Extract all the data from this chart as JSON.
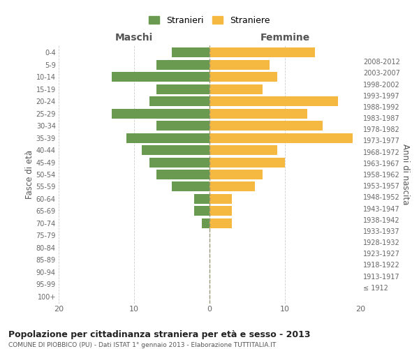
{
  "age_groups": [
    "100+",
    "95-99",
    "90-94",
    "85-89",
    "80-84",
    "75-79",
    "70-74",
    "65-69",
    "60-64",
    "55-59",
    "50-54",
    "45-49",
    "40-44",
    "35-39",
    "30-34",
    "25-29",
    "20-24",
    "15-19",
    "10-14",
    "5-9",
    "0-4"
  ],
  "birth_years": [
    "≤ 1912",
    "1913-1917",
    "1918-1922",
    "1923-1927",
    "1928-1932",
    "1933-1937",
    "1938-1942",
    "1943-1947",
    "1948-1952",
    "1953-1957",
    "1958-1962",
    "1963-1967",
    "1968-1972",
    "1973-1977",
    "1978-1982",
    "1983-1987",
    "1988-1992",
    "1993-1997",
    "1998-2002",
    "2003-2007",
    "2008-2012"
  ],
  "maschi": [
    0,
    0,
    0,
    0,
    0,
    0,
    1,
    2,
    2,
    5,
    7,
    8,
    9,
    11,
    7,
    13,
    8,
    7,
    13,
    7,
    5
  ],
  "femmine": [
    0,
    0,
    0,
    0,
    0,
    0,
    3,
    3,
    3,
    6,
    7,
    10,
    9,
    19,
    15,
    13,
    17,
    7,
    9,
    8,
    14
  ],
  "maschi_color": "#6a9a50",
  "femmine_color": "#f5b942",
  "background_color": "#ffffff",
  "grid_color": "#cccccc",
  "title": "Popolazione per cittadinanza straniera per età e sesso - 2013",
  "subtitle": "COMUNE DI PIOBBICO (PU) - Dati ISTAT 1° gennaio 2013 - Elaborazione TUTTITALIA.IT",
  "ylabel_left": "Fasce di età",
  "ylabel_right": "Anni di nascita",
  "xlabel_maschi": "Maschi",
  "xlabel_femmine": "Femmine",
  "legend_maschi": "Stranieri",
  "legend_femmine": "Straniere",
  "xlim": 20,
  "bar_height": 0.8
}
